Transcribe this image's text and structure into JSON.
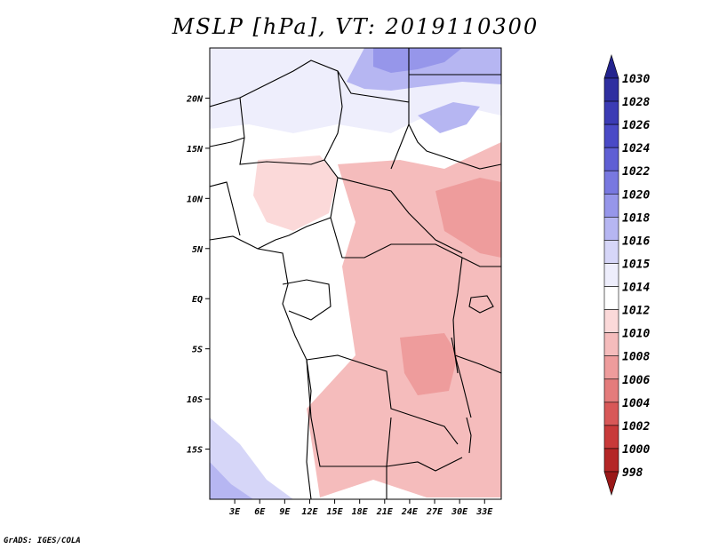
{
  "title": "MSLP [hPa], VT: 2019110300",
  "credit": "GrADS: IGES/COLA",
  "chart_data": {
    "type": "heatmap",
    "title": "MSLP [hPa], VT: 2019110300",
    "variable": "MSLP",
    "units": "hPa",
    "valid_time": "2019110300",
    "lon_range": [
      0,
      35
    ],
    "lat_range": [
      -20,
      25
    ],
    "x_ticks": [
      "3E",
      "6E",
      "9E",
      "12E",
      "15E",
      "18E",
      "21E",
      "24E",
      "27E",
      "30E",
      "33E"
    ],
    "y_ticks": [
      "20N",
      "15N",
      "10N",
      "5N",
      "EQ",
      "5S",
      "10S",
      "15S"
    ],
    "colorbar": {
      "levels": [
        "1030",
        "1028",
        "1026",
        "1024",
        "1022",
        "1020",
        "1018",
        "1016",
        "1015",
        "1014",
        "1012",
        "1010",
        "1008",
        "1006",
        "1004",
        "1002",
        "1000",
        "998"
      ],
      "colors": [
        "#23238e",
        "#2f2fa0",
        "#3b3bb4",
        "#4a4ac6",
        "#5f5fd4",
        "#7878e0",
        "#9696ea",
        "#b6b6f2",
        "#d6d6f8",
        "#eeeefc",
        "#ffffff",
        "#fbd9d9",
        "#f5bcbc",
        "#ee9c9c",
        "#e47c7c",
        "#d85858",
        "#c83a3a",
        "#b42626",
        "#9a1818"
      ]
    },
    "regions": [
      {
        "name": "background",
        "value": 1012
      },
      {
        "name": "sahara-north",
        "value": 1014
      },
      {
        "name": "libya-high",
        "value": 1016
      },
      {
        "name": "ethiopia-highland",
        "value": 1016
      },
      {
        "name": "southern-ocean",
        "value": 1015
      },
      {
        "name": "west-africa",
        "value": 1010
      },
      {
        "name": "central-trough",
        "value": 1008
      },
      {
        "name": "east-sudan-low",
        "value": 1006
      },
      {
        "name": "congo-low",
        "value": 1006
      },
      {
        "name": "south-low",
        "value": 1008
      }
    ]
  }
}
